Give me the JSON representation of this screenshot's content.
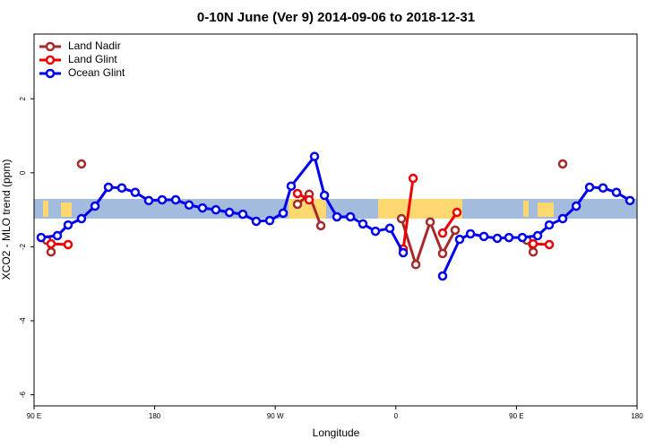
{
  "chart_data": {
    "type": "line",
    "title": "0-10N June (Ver 9)   2014-09-06 to 2018-12-31",
    "x_label": "Longitude",
    "y_label": "XCO2 - MLO trend (ppm)",
    "xlim": [
      90,
      540
    ],
    "ylim": [
      -6.3,
      3.75
    ],
    "xticks": [
      {
        "value": 90,
        "label": "90 E"
      },
      {
        "value": 180,
        "label": "180"
      },
      {
        "value": 270,
        "label": "90 W"
      },
      {
        "value": 360,
        "label": "0"
      },
      {
        "value": 450,
        "label": "90 E"
      },
      {
        "value": 540,
        "label": "180"
      }
    ],
    "yticks": [
      -6,
      -4,
      -2,
      0,
      2
    ],
    "legend": "top-left",
    "series": [
      {
        "name": "Land Nadir",
        "color": "#a52a2a",
        "x": [
          99.4,
          102.7,
          null,
          125.4,
          null,
          286.6,
          295.3,
          304.0,
          null,
          364.2,
          374.9,
          385.6,
          394.9,
          404.3,
          null,
          457.8,
          462.5,
          null,
          484.5
        ],
        "values": [
          -1.82,
          -2.14,
          null,
          0.24,
          null,
          -0.85,
          -0.58,
          -1.43,
          null,
          -1.24,
          -2.48,
          -1.33,
          -2.18,
          -1.55,
          null,
          -1.82,
          -2.14,
          null,
          0.24
        ]
      },
      {
        "name": "Land Glint",
        "color": "#ee0000",
        "x": [
          102.7,
          115.4,
          null,
          286.6,
          295.3,
          null,
          365.5,
          372.9,
          null,
          394.9,
          405.6,
          null,
          462.5,
          474.5
        ],
        "values": [
          -1.92,
          -1.94,
          null,
          -0.56,
          -0.73,
          null,
          -2.06,
          -0.15,
          null,
          -1.63,
          -1.07,
          null,
          -1.92,
          -1.94
        ]
      },
      {
        "name": "Ocean Glint",
        "color": "#0000ee",
        "x": [
          95.3,
          107.4,
          115.4,
          125.4,
          135.5,
          145.5,
          155.5,
          165.5,
          175.6,
          185.6,
          195.7,
          205.7,
          215.7,
          225.7,
          235.8,
          245.8,
          255.8,
          265.9,
          275.9,
          281.9,
          299.3,
          306.7,
          316.0,
          326.1,
          335.4,
          344.8,
          355.5,
          365.5,
          null,
          394.9,
          407.6,
          415.7,
          425.7,
          435.7,
          444.4,
          454.4,
          465.8,
          474.5,
          484.5,
          494.6,
          504.6,
          514.6,
          524.6,
          534.7
        ],
        "values": [
          -1.75,
          -1.7,
          -1.41,
          -1.24,
          -0.9,
          -0.39,
          -0.41,
          -0.53,
          -0.75,
          -0.73,
          -0.73,
          -0.87,
          -0.95,
          -1.0,
          -1.07,
          -1.12,
          -1.31,
          -1.29,
          -1.09,
          -0.36,
          0.44,
          -0.61,
          -1.19,
          -1.19,
          -1.38,
          -1.58,
          -1.5,
          -2.16,
          null,
          -2.79,
          -1.8,
          -1.65,
          -1.72,
          -1.77,
          -1.75,
          -1.75,
          -1.7,
          -1.41,
          -1.24,
          -0.9,
          -0.39,
          -0.41,
          -0.53,
          -0.75
        ]
      }
    ]
  }
}
